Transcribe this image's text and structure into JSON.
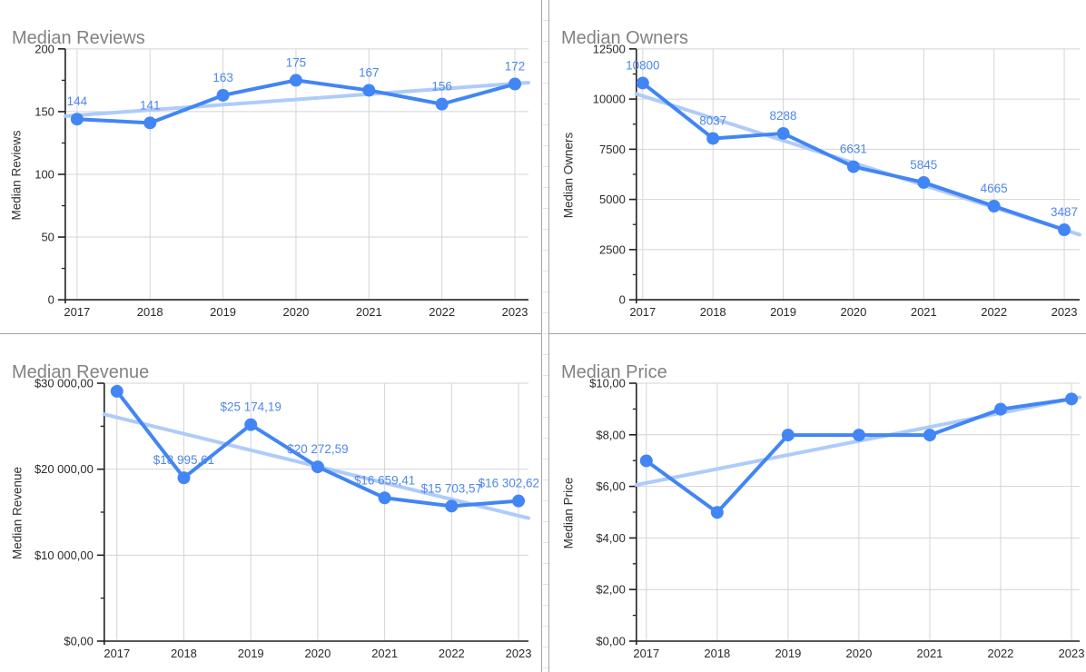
{
  "colors": {
    "series": "#4285f4",
    "trendline": "#aecbfa",
    "data_label": "#4f87ee",
    "gridline": "#d4d4d4",
    "axis": "#212121",
    "tick_label": "#2a2a2a",
    "axis_title": "#333333",
    "chart_title": "#828282",
    "divider": "#a3a3a3",
    "background": "#ffffff"
  },
  "chart_data": [
    {
      "type": "line",
      "title": "Median Reviews",
      "ylabel": "Median Reviews",
      "x": [
        "2017",
        "2018",
        "2019",
        "2020",
        "2021",
        "2022",
        "2023"
      ],
      "values": [
        144,
        141,
        163,
        175,
        167,
        156,
        172
      ],
      "point_labels": [
        "144",
        "141",
        "163",
        "175",
        "167",
        "156",
        "172"
      ],
      "ylim": [
        0,
        200
      ],
      "y_ticks": [
        0,
        50,
        100,
        150,
        200
      ],
      "y_tick_labels": [
        "0",
        "50",
        "100",
        "150",
        "200"
      ],
      "trendline": "linear",
      "grid": true,
      "legend": "none",
      "data_labels_visible": true
    },
    {
      "type": "line",
      "title": "Median Owners",
      "ylabel": "Median Owners",
      "x": [
        "2017",
        "2018",
        "2019",
        "2020",
        "2021",
        "2022",
        "2023"
      ],
      "values": [
        10800,
        8037,
        8288,
        6631,
        5845,
        4665,
        3487
      ],
      "point_labels": [
        "10800",
        "8037",
        "8288",
        "6631",
        "5845",
        "4665",
        "3487"
      ],
      "ylim": [
        0,
        12500
      ],
      "y_ticks": [
        0,
        2500,
        5000,
        7500,
        10000,
        12500
      ],
      "y_tick_labels": [
        "0",
        "2500",
        "5000",
        "7500",
        "10000",
        "12500"
      ],
      "trendline": "linear",
      "grid": true,
      "legend": "none",
      "data_labels_visible": true
    },
    {
      "type": "line",
      "title": "Median Revenue",
      "ylabel": "Median Revenue",
      "x": [
        "2017",
        "2018",
        "2019",
        "2020",
        "2021",
        "2022",
        "2023"
      ],
      "values": [
        29059,
        18995.61,
        25174.19,
        20272.59,
        16659.41,
        15703.57,
        16302.62
      ],
      "point_labels": [
        "",
        "$18 995,61",
        "$25 174,19",
        "$20 272,59",
        "$16 659,41",
        "$15 703,57",
        "$16 302,62"
      ],
      "ylim": [
        0,
        30000
      ],
      "y_ticks": [
        0,
        10000,
        20000,
        30000
      ],
      "y_tick_labels": [
        "$0,00",
        "$10 000,00",
        "$20 000,00",
        "$30 000,00"
      ],
      "trendline": "linear",
      "grid": true,
      "legend": "none",
      "data_labels_visible": true
    },
    {
      "type": "line",
      "title": "Median Price",
      "ylabel": "Median Price",
      "x": [
        "2017",
        "2018",
        "2019",
        "2020",
        "2021",
        "2022",
        "2023"
      ],
      "values": [
        6.99,
        4.99,
        7.99,
        7.99,
        7.99,
        8.99,
        9.39
      ],
      "point_labels": [
        "",
        "",
        "",
        "",
        "",
        "",
        ""
      ],
      "ylim": [
        0,
        10
      ],
      "y_ticks": [
        0,
        2,
        4,
        6,
        8,
        10
      ],
      "y_tick_labels": [
        "$0,00",
        "$2,00",
        "$4,00",
        "$6,00",
        "$8,00",
        "$10,00"
      ],
      "trendline": "linear",
      "grid": true,
      "legend": "none",
      "data_labels_visible": false
    }
  ]
}
